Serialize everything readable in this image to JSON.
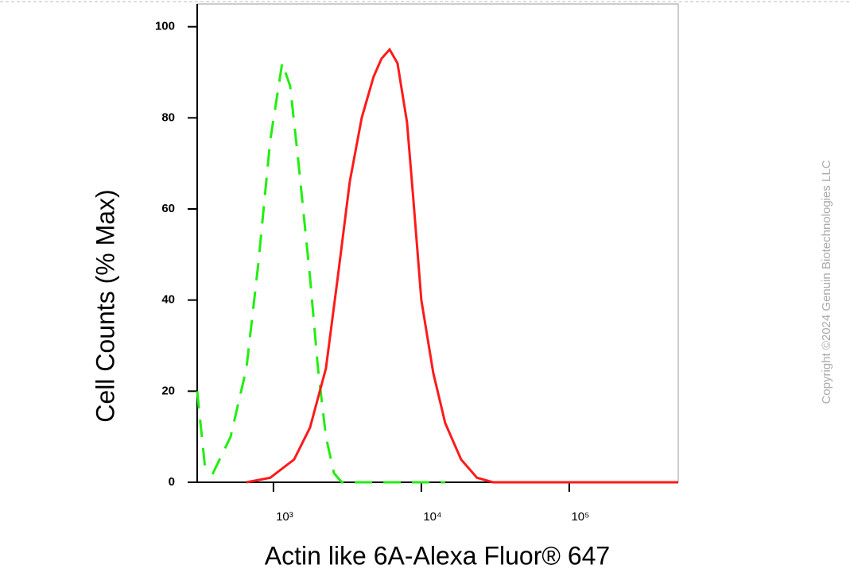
{
  "chart_data": {
    "type": "line",
    "xlabel": "Actin like 6A-Alexa Fluor® 647",
    "ylabel": "Cell Counts (% Max)",
    "copyright": "Copyright ©2024 Genuin Biotechnologies LLC",
    "xscale": "log",
    "xlim": [
      305,
      546000
    ],
    "ylim": [
      0,
      105
    ],
    "xticks": [
      {
        "value": 1000,
        "label": "10³"
      },
      {
        "value": 10000,
        "label": "10⁴"
      },
      {
        "value": 100000,
        "label": "10⁵"
      }
    ],
    "yticks": [
      0,
      20,
      40,
      60,
      80,
      100
    ],
    "series": [
      {
        "color": "#22ee11",
        "linestyle": "dashed",
        "x": [
          305,
          345,
          390,
          513,
          656,
          790,
          950,
          1146,
          1297,
          1468,
          1766,
          2000,
          2264,
          2565,
          2900,
          14500
        ],
        "values": [
          20,
          3,
          2,
          10,
          25,
          48,
          75,
          92,
          87,
          71,
          45,
          25,
          10,
          2,
          0,
          0
        ]
      },
      {
        "color": "#ff1a1a",
        "linestyle": "solid",
        "x": [
          656,
          950,
          1380,
          1766,
          2264,
          2722,
          3280,
          3950,
          4750,
          5380,
          6100,
          6900,
          8000,
          8830,
          10000,
          12040,
          14500,
          18580,
          23800,
          30500,
          546000
        ],
        "values": [
          0,
          1,
          5,
          12,
          25,
          45,
          66,
          80,
          89,
          93,
          95,
          92,
          79,
          62,
          40,
          24,
          13,
          5,
          1,
          0,
          0
        ]
      }
    ]
  }
}
